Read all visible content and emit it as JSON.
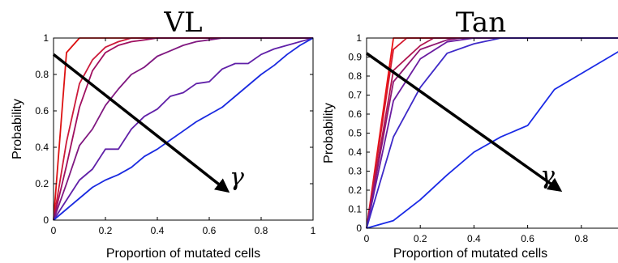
{
  "chart_data": [
    {
      "type": "line",
      "title": "VL",
      "xlabel": "Proportion of mutated cells",
      "ylabel": "Probability",
      "xlim": [
        0,
        1
      ],
      "ylim": [
        0,
        1
      ],
      "xticks": [
        "0",
        "0.2",
        "0.4",
        "0.6",
        "0.8",
        "1"
      ],
      "yticks": [
        "0",
        "0.2",
        "0.4",
        "0.6",
        "0.8",
        "1"
      ],
      "grid": false,
      "annotation": {
        "text": "γ",
        "arrow_from": [
          0,
          0.91
        ],
        "arrow_to": [
          0.67,
          0.16
        ]
      },
      "series": [
        {
          "color": "#dd1111",
          "x": [
            0,
            0.05,
            0.1,
            1
          ],
          "y": [
            0,
            0.92,
            1,
            1
          ]
        },
        {
          "color": "#cc1a3a",
          "x": [
            0,
            0.05,
            0.1,
            0.15,
            0.2,
            0.25,
            0.3,
            0.4,
            1
          ],
          "y": [
            0,
            0.43,
            0.75,
            0.88,
            0.95,
            0.98,
            1,
            1,
            1
          ]
        },
        {
          "color": "#a01060",
          "x": [
            0,
            0.05,
            0.1,
            0.15,
            0.2,
            0.25,
            0.3,
            0.35,
            0.4,
            0.5,
            0.6,
            1
          ],
          "y": [
            0,
            0.3,
            0.62,
            0.82,
            0.92,
            0.96,
            0.98,
            0.99,
            1,
            1,
            1,
            1
          ]
        },
        {
          "color": "#801880",
          "x": [
            0,
            0.05,
            0.1,
            0.15,
            0.2,
            0.25,
            0.3,
            0.35,
            0.4,
            0.45,
            0.5,
            0.55,
            0.6,
            0.65,
            0.7,
            0.8,
            1
          ],
          "y": [
            0,
            0.2,
            0.41,
            0.5,
            0.63,
            0.72,
            0.8,
            0.84,
            0.9,
            0.93,
            0.96,
            0.98,
            0.99,
            1,
            1,
            1,
            1
          ]
        },
        {
          "color": "#6020a8",
          "x": [
            0,
            0.1,
            0.15,
            0.2,
            0.25,
            0.3,
            0.35,
            0.4,
            0.45,
            0.5,
            0.55,
            0.6,
            0.65,
            0.7,
            0.75,
            0.8,
            0.85,
            0.9,
            1
          ],
          "y": [
            0,
            0.22,
            0.28,
            0.39,
            0.39,
            0.5,
            0.57,
            0.61,
            0.68,
            0.7,
            0.75,
            0.76,
            0.83,
            0.86,
            0.86,
            0.91,
            0.94,
            0.96,
            1
          ]
        },
        {
          "color": "#1a2ae0",
          "x": [
            0,
            0.05,
            0.1,
            0.15,
            0.2,
            0.25,
            0.3,
            0.35,
            0.4,
            0.45,
            0.5,
            0.55,
            0.6,
            0.65,
            0.7,
            0.75,
            0.8,
            0.85,
            0.9,
            0.95,
            1
          ],
          "y": [
            0,
            0.06,
            0.12,
            0.18,
            0.22,
            0.25,
            0.29,
            0.35,
            0.39,
            0.44,
            0.49,
            0.54,
            0.58,
            0.62,
            0.68,
            0.74,
            0.8,
            0.85,
            0.91,
            0.96,
            1
          ]
        }
      ]
    },
    {
      "type": "line",
      "title": "Tan",
      "xlabel": "Proportion of mutated cells",
      "ylabel": "Probability",
      "xlim": [
        0,
        1
      ],
      "ylim": [
        0,
        1
      ],
      "xticks": [
        "0",
        "0.2",
        "0.4",
        "0.6",
        "0.8"
      ],
      "yticks": [
        "0",
        "0.1",
        "0.2",
        "0.3",
        "0.4",
        "0.5",
        "0.6",
        "0.7",
        "0.8",
        "0.9",
        "1"
      ],
      "grid": false,
      "annotation": {
        "text": "γ",
        "arrow_from": [
          0,
          0.92
        ],
        "arrow_to": [
          0.72,
          0.2
        ]
      },
      "series": [
        {
          "color": "#ee1111",
          "x": [
            0,
            0.1,
            1
          ],
          "y": [
            0,
            1,
            1
          ]
        },
        {
          "color": "#d4182e",
          "x": [
            0,
            0.1,
            0.15,
            1
          ],
          "y": [
            0,
            0.94,
            1,
            1
          ]
        },
        {
          "color": "#b01650",
          "x": [
            0,
            0.1,
            0.2,
            0.25,
            1
          ],
          "y": [
            0,
            0.83,
            0.96,
            1,
            1
          ]
        },
        {
          "color": "#901872",
          "x": [
            0,
            0.1,
            0.2,
            0.3,
            0.35,
            1
          ],
          "y": [
            0,
            0.77,
            0.94,
            0.99,
            1,
            1
          ]
        },
        {
          "color": "#6a1ca0",
          "x": [
            0,
            0.1,
            0.2,
            0.3,
            0.4,
            0.5,
            1
          ],
          "y": [
            0,
            0.67,
            0.89,
            0.98,
            1,
            1,
            1
          ]
        },
        {
          "color": "#3e2ac8",
          "x": [
            0,
            0.1,
            0.2,
            0.3,
            0.4,
            0.5,
            0.6,
            1
          ],
          "y": [
            0,
            0.48,
            0.74,
            0.92,
            0.97,
            1,
            1,
            1
          ]
        },
        {
          "color": "#1a2ae6",
          "x": [
            0,
            0.1,
            0.2,
            0.3,
            0.4,
            0.5,
            0.6,
            0.7,
            1
          ],
          "y": [
            0,
            0.04,
            0.15,
            0.28,
            0.4,
            0.48,
            0.54,
            0.73,
            0.98
          ]
        }
      ]
    }
  ]
}
